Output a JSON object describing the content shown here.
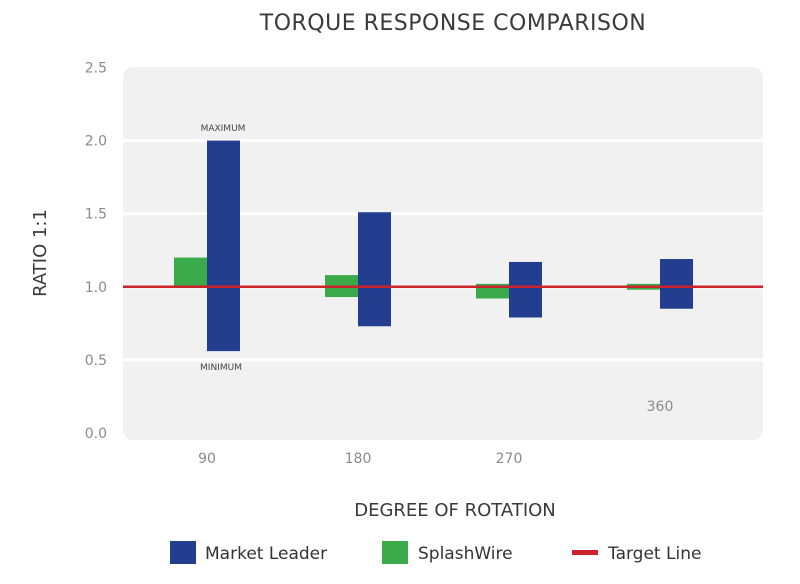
{
  "chart_data": {
    "type": "bar",
    "subtype": "floating-range",
    "title": "TORQUE RESPONSE COMPARISON",
    "xlabel": "DEGREE OF ROTATION",
    "ylabel": "RATIO 1:1",
    "ylim": [
      0,
      2.5
    ],
    "yticks": [
      "0.0",
      "0.5",
      "1.0",
      "1.5",
      "2.0",
      "2.5"
    ],
    "categories": [
      "90",
      "180",
      "270",
      "360"
    ],
    "series": [
      {
        "name": "SplashWire",
        "color": "#3aaa4a",
        "low": [
          1.0,
          0.93,
          0.92,
          0.98
        ],
        "high": [
          1.2,
          1.08,
          1.02,
          1.02
        ]
      },
      {
        "name": "Market Leader",
        "color": "#233e8e",
        "low": [
          0.56,
          0.73,
          0.79,
          0.85
        ],
        "high": [
          2.0,
          1.51,
          1.17,
          1.19
        ]
      }
    ],
    "target": {
      "name": "Target Line",
      "value": 1.0,
      "color": "#cc2229"
    },
    "annotations": {
      "max": "MAXIMUM",
      "min": "MINIMUM"
    },
    "grid": true,
    "legend": "bottom"
  }
}
